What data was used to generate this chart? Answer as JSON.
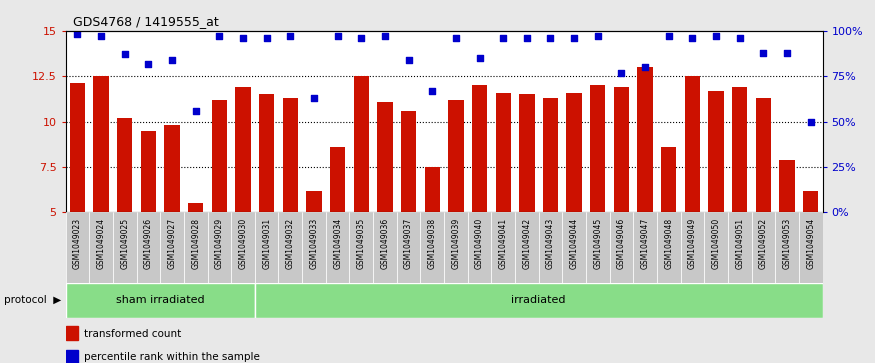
{
  "title": "GDS4768 / 1419555_at",
  "samples": [
    "GSM1049023",
    "GSM1049024",
    "GSM1049025",
    "GSM1049026",
    "GSM1049027",
    "GSM1049028",
    "GSM1049029",
    "GSM1049030",
    "GSM1049031",
    "GSM1049032",
    "GSM1049033",
    "GSM1049034",
    "GSM1049035",
    "GSM1049036",
    "GSM1049037",
    "GSM1049038",
    "GSM1049039",
    "GSM1049040",
    "GSM1049041",
    "GSM1049042",
    "GSM1049043",
    "GSM1049044",
    "GSM1049045",
    "GSM1049046",
    "GSM1049047",
    "GSM1049048",
    "GSM1049049",
    "GSM1049050",
    "GSM1049051",
    "GSM1049052",
    "GSM1049053",
    "GSM1049054"
  ],
  "bar_values": [
    12.1,
    12.5,
    10.2,
    9.5,
    9.8,
    5.5,
    11.2,
    11.9,
    11.5,
    11.3,
    6.2,
    8.6,
    12.5,
    11.1,
    10.6,
    7.5,
    11.2,
    12.0,
    11.6,
    11.5,
    11.3,
    11.6,
    12.0,
    11.9,
    13.0,
    8.6,
    12.5,
    11.7,
    11.9,
    11.3,
    7.9,
    6.2
  ],
  "percentile_values": [
    98,
    97,
    87,
    82,
    84,
    56,
    97,
    96,
    96,
    97,
    63,
    97,
    96,
    97,
    84,
    67,
    96,
    85,
    96,
    96,
    96,
    96,
    97,
    77,
    80,
    97,
    96,
    97,
    96,
    88,
    88,
    50
  ],
  "sham_count": 8,
  "irradiated_count": 24,
  "ylim_left": [
    5,
    15
  ],
  "ylim_right": [
    0,
    100
  ],
  "yticks_left": [
    5,
    7.5,
    10,
    12.5,
    15
  ],
  "ytick_labels_left": [
    "5",
    "7.5",
    "10",
    "12.5",
    "15"
  ],
  "yticks_right": [
    0,
    25,
    50,
    75,
    100
  ],
  "ytick_labels_right": [
    "0%",
    "25%",
    "50%",
    "75%",
    "100%"
  ],
  "bar_color": "#CC1100",
  "dot_color": "#0000CC",
  "bg_color": "#E8E8E8",
  "plot_bg": "#FFFFFF",
  "xtick_bg": "#C8C8C8",
  "green_color": "#88DD88",
  "label_transformed": "transformed count",
  "label_percentile": "percentile rank within the sample",
  "protocol_label": "protocol",
  "sham_label": "sham irradiated",
  "irradiated_label": "irradiated"
}
